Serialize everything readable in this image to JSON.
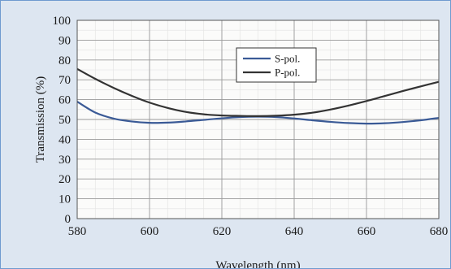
{
  "chart_data": {
    "type": "line",
    "xlabel": "Wavelength (nm)",
    "ylabel": "Transmission (%)",
    "xlim": [
      580,
      680
    ],
    "ylim": [
      0,
      100
    ],
    "x_ticks": [
      580,
      600,
      620,
      640,
      660,
      680
    ],
    "y_ticks": [
      0,
      10,
      20,
      30,
      40,
      50,
      60,
      70,
      80,
      90,
      100
    ],
    "grid": true,
    "legend_position": "top-right",
    "series": [
      {
        "name": "S-pol.",
        "color": "#3a5a96",
        "x": [
          580,
          585,
          590,
          595,
          600,
          605,
          610,
          615,
          620,
          625,
          630,
          635,
          640,
          645,
          650,
          655,
          660,
          665,
          670,
          675,
          680
        ],
        "y": [
          59,
          53.5,
          50.5,
          49,
          48.3,
          48.4,
          49,
          49.8,
          50.6,
          51.2,
          51.4,
          51.2,
          50.5,
          49.6,
          48.8,
          48.2,
          47.9,
          48.1,
          48.7,
          49.6,
          50.8
        ]
      },
      {
        "name": "P-pol.",
        "color": "#333333",
        "x": [
          580,
          585,
          590,
          595,
          600,
          605,
          610,
          615,
          620,
          625,
          630,
          635,
          640,
          645,
          650,
          655,
          660,
          665,
          670,
          675,
          680
        ],
        "y": [
          75.5,
          70.5,
          66,
          62,
          58.5,
          55.8,
          53.8,
          52.6,
          52,
          51.8,
          51.7,
          51.9,
          52.4,
          53.4,
          55,
          57,
          59.3,
          61.8,
          64.3,
          66.7,
          69
        ]
      }
    ]
  }
}
